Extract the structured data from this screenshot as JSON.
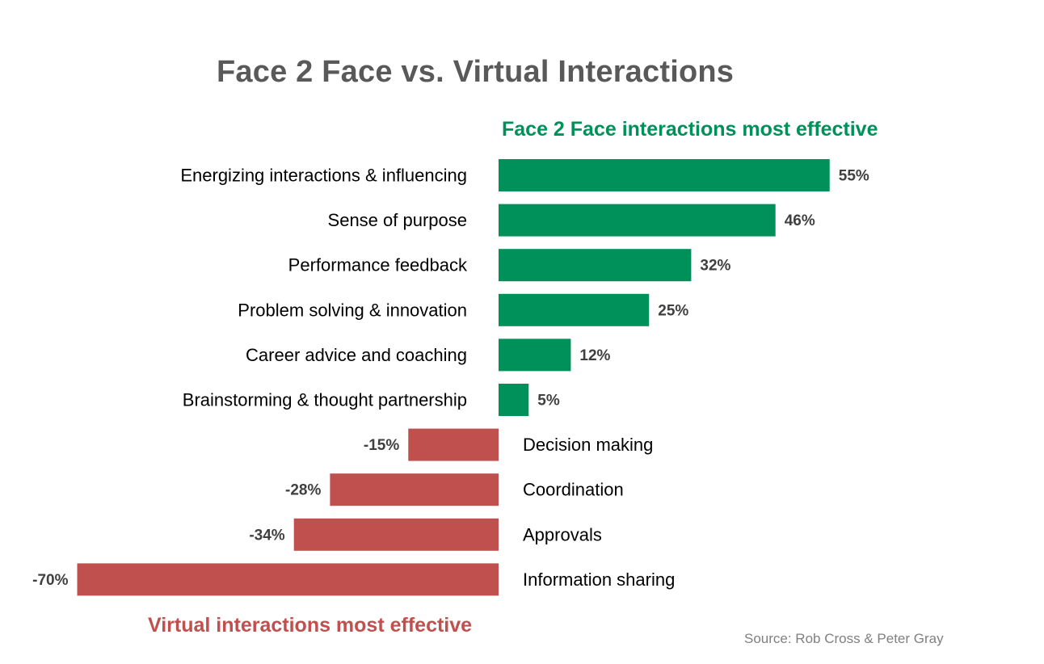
{
  "colors": {
    "positive": "#00905A",
    "negative": "#C0504D",
    "title": "#595959",
    "label": "#000000",
    "value": "#404040",
    "source": "#808080"
  },
  "chart_data": {
    "type": "bar",
    "orientation": "horizontal",
    "title": "Face 2 Face vs. Virtual Interactions",
    "positive_caption": "Face 2 Face interactions most effective",
    "negative_caption": "Virtual interactions most effective",
    "source": "Source: Rob Cross & Peter Gray",
    "categories": [
      "Energizing interactions & influencing",
      "Sense of purpose",
      "Performance feedback",
      "Problem solving & innovation",
      "Career advice and coaching",
      "Brainstorming & thought partnership",
      "Decision making",
      "Coordination",
      "Approvals",
      "Information sharing"
    ],
    "values": [
      55,
      46,
      32,
      25,
      12,
      5,
      -15,
      -28,
      -34,
      -70
    ],
    "value_labels": [
      "55%",
      "46%",
      "32%",
      "25%",
      "12%",
      "5%",
      "-15%",
      "-28%",
      "-34%",
      "-70%"
    ],
    "unit": "%",
    "grid": false,
    "legend": "none"
  }
}
